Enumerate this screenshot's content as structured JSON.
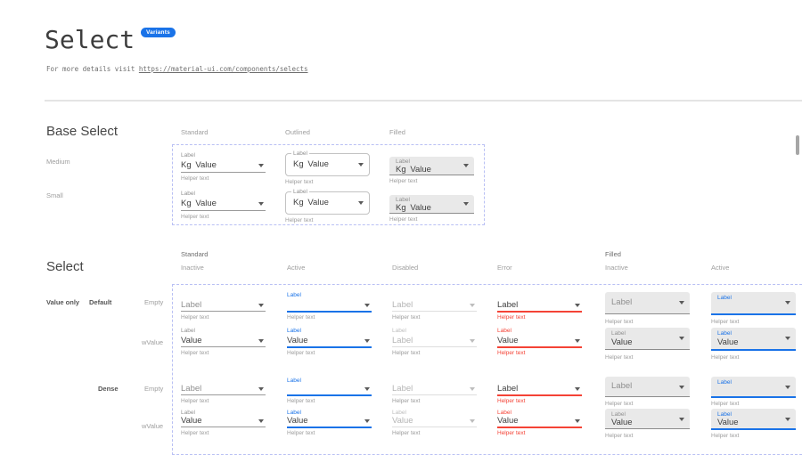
{
  "page": {
    "title": "Select",
    "badge": "Variants",
    "subtitle_prefix": "For more details visit ",
    "subtitle_link": "https://material-ui.com/components/selects"
  },
  "colors": {
    "accent": "#1a73e8",
    "error": "#f44336",
    "filled_background": "#e9e9e9",
    "dashed_outline": "#b9c0f4"
  },
  "base_select": {
    "heading": "Base Select",
    "columns": [
      "Standard",
      "Outlined",
      "Filled"
    ],
    "sizes": [
      "Medium",
      "Small"
    ],
    "cell": {
      "label": "Label",
      "prefix": "Kg",
      "value": "Value",
      "helper": "Helper text"
    }
  },
  "select_matrix": {
    "heading": "Select",
    "category_label": "Value only",
    "groups": [
      {
        "label": "Standard",
        "states": [
          "Inactive",
          "Active",
          "Disabled",
          "Error"
        ]
      },
      {
        "label": "Filled",
        "states": [
          "Inactive",
          "Active"
        ]
      }
    ],
    "rows": [
      {
        "group_label": "Default",
        "state_label": "Empty",
        "cells": [
          {
            "variant": "standard",
            "mode": "inactive",
            "float_label": null,
            "value": "Label",
            "value_muted": true,
            "helper": "Helper text"
          },
          {
            "variant": "standard",
            "mode": "active",
            "float_label": "Label",
            "value": "",
            "value_muted": false,
            "helper": "Helper text"
          },
          {
            "variant": "standard",
            "mode": "disabled",
            "float_label": null,
            "value": "Label",
            "value_muted": true,
            "helper": "Helper text"
          },
          {
            "variant": "standard",
            "mode": "error",
            "float_label": null,
            "value": "Label",
            "value_muted": false,
            "helper": "Helper text"
          },
          {
            "variant": "filled",
            "mode": "inactive",
            "float_label": null,
            "value": "Label",
            "value_muted": true,
            "helper": "Helper text"
          },
          {
            "variant": "filled",
            "mode": "active",
            "float_label": "Label",
            "value": "",
            "value_muted": false,
            "helper": "Helper text"
          }
        ]
      },
      {
        "group_label": "",
        "state_label": "wValue",
        "cells": [
          {
            "variant": "standard",
            "mode": "inactive",
            "float_label": "Label",
            "value": "Value",
            "value_muted": false,
            "helper": "Helper text"
          },
          {
            "variant": "standard",
            "mode": "active",
            "float_label": "Label",
            "value": "Value",
            "value_muted": false,
            "helper": "Helper text"
          },
          {
            "variant": "standard",
            "mode": "disabled",
            "float_label": "Label",
            "value": "Label",
            "value_muted": false,
            "helper": "Helper text"
          },
          {
            "variant": "standard",
            "mode": "error",
            "float_label": "Label",
            "value": "Value",
            "value_muted": false,
            "helper": "Helper text"
          },
          {
            "variant": "filled",
            "mode": "inactive",
            "float_label": "Label",
            "value": "Value",
            "value_muted": false,
            "helper": "Helper text"
          },
          {
            "variant": "filled",
            "mode": "active",
            "float_label": "Label",
            "value": "Value",
            "value_muted": false,
            "helper": "Helper text"
          }
        ]
      },
      {
        "group_label": "Dense",
        "state_label": "Empty",
        "cells": [
          {
            "variant": "standard",
            "mode": "inactive",
            "float_label": null,
            "value": "Label",
            "value_muted": true,
            "helper": "Helper text"
          },
          {
            "variant": "standard",
            "mode": "active",
            "float_label": "Label",
            "value": "",
            "value_muted": false,
            "helper": "Helper text"
          },
          {
            "variant": "standard",
            "mode": "disabled",
            "float_label": null,
            "value": "Label",
            "value_muted": true,
            "helper": "Helper text"
          },
          {
            "variant": "standard",
            "mode": "error",
            "float_label": null,
            "value": "Label",
            "value_muted": false,
            "helper": "Helper text"
          },
          {
            "variant": "filled",
            "mode": "inactive",
            "float_label": null,
            "value": "Label",
            "value_muted": true,
            "helper": "Helper text"
          },
          {
            "variant": "filled",
            "mode": "active",
            "float_label": "Label",
            "value": "",
            "value_muted": false,
            "helper": "Helper text"
          }
        ]
      },
      {
        "group_label": "",
        "state_label": "wValue",
        "cells": [
          {
            "variant": "standard",
            "mode": "inactive",
            "float_label": "Label",
            "value": "Value",
            "value_muted": false,
            "helper": "Helper text"
          },
          {
            "variant": "standard",
            "mode": "active",
            "float_label": "Label",
            "value": "Value",
            "value_muted": false,
            "helper": "Helper text"
          },
          {
            "variant": "standard",
            "mode": "disabled",
            "float_label": "Label",
            "value": "Value",
            "value_muted": false,
            "helper": "Helper text"
          },
          {
            "variant": "standard",
            "mode": "error",
            "float_label": "Label",
            "value": "Value",
            "value_muted": false,
            "helper": "Helper text"
          },
          {
            "variant": "filled",
            "mode": "inactive",
            "float_label": "Label",
            "value": "Value",
            "value_muted": false,
            "helper": "Helper text"
          },
          {
            "variant": "filled",
            "mode": "active",
            "float_label": "Label",
            "value": "Value",
            "value_muted": false,
            "helper": "Helper text"
          }
        ]
      }
    ]
  }
}
